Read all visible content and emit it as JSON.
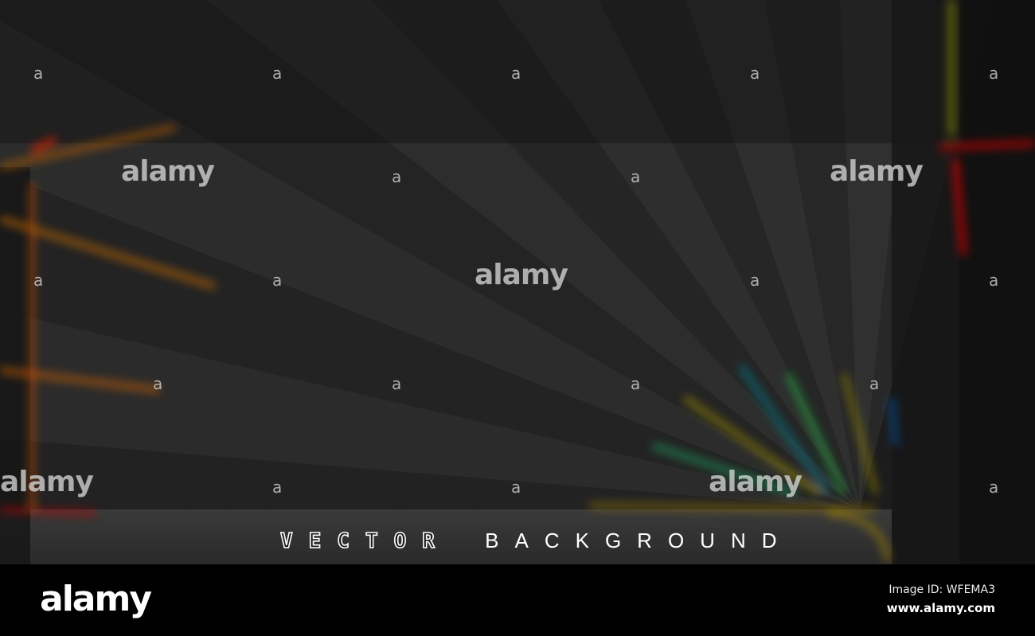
{
  "headline": {
    "outlined": "VECTOR",
    "plain": "BACKGROUND"
  },
  "watermark": {
    "logo": "alamy",
    "mark": "a"
  },
  "footer": {
    "logo": "alamy",
    "image_id": "Image ID: WFEMA3",
    "url": "www.alamy.com"
  },
  "colors": {
    "background": "#2a2a2a",
    "glow_orange": "#ff7a00",
    "glow_red": "#e01010",
    "glow_green": "#20c040",
    "glow_cyan": "#10a0c0",
    "glow_yellow": "#c0a000"
  }
}
